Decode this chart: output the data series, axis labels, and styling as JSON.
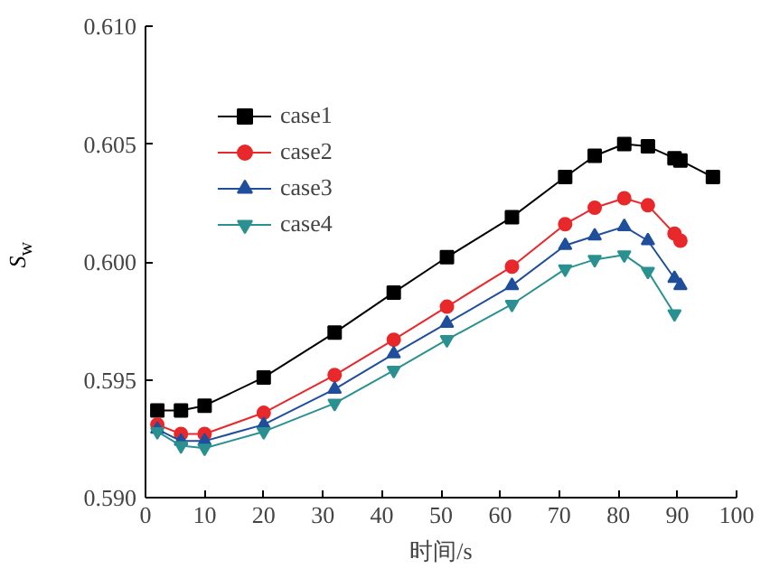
{
  "chart_data": {
    "type": "line",
    "xlabel": "时间/s",
    "ylabel": "S$_{w}$",
    "xlim": [
      0,
      100
    ],
    "ylim": [
      0.59,
      0.61
    ],
    "xticks": [
      0,
      10,
      20,
      30,
      40,
      50,
      60,
      70,
      80,
      90,
      100
    ],
    "yticks": [
      {
        "value": 0.59,
        "label": "0.590"
      },
      {
        "value": 0.595,
        "label": "0.595"
      },
      {
        "value": 0.6,
        "label": "0.600"
      },
      {
        "value": 0.605,
        "label": "0.605"
      },
      {
        "value": 0.61,
        "label": "0.610"
      }
    ],
    "grid": false,
    "legend": "top left",
    "series": [
      {
        "name": "case1",
        "color": "#000000",
        "marker": "square",
        "x": [
          2,
          6,
          10,
          20,
          32,
          42,
          51,
          62,
          71,
          76,
          81,
          85,
          89.5,
          90.5,
          96
        ],
        "values": [
          0.5937,
          0.5937,
          0.5939,
          0.5951,
          0.597,
          0.5987,
          0.6002,
          0.6019,
          0.6036,
          0.6045,
          0.605,
          0.6049,
          0.6044,
          0.6043,
          0.6036
        ]
      },
      {
        "name": "case2",
        "color": "#e8282a",
        "marker": "circle",
        "x": [
          2,
          6,
          10,
          20,
          32,
          42,
          51,
          62,
          71,
          76,
          81,
          85,
          89.5,
          90.5
        ],
        "values": [
          0.5931,
          0.5927,
          0.5927,
          0.5936,
          0.5952,
          0.5967,
          0.5981,
          0.5998,
          0.6016,
          0.6023,
          0.6027,
          0.6024,
          0.6012,
          0.6009
        ]
      },
      {
        "name": "case3",
        "color": "#1f4e9c",
        "marker": "triangle",
        "x": [
          2,
          6,
          10,
          20,
          32,
          42,
          51,
          62,
          71,
          76,
          81,
          85,
          89.5,
          90.5
        ],
        "values": [
          0.5929,
          0.5924,
          0.5924,
          0.5931,
          0.5946,
          0.5961,
          0.5974,
          0.599,
          0.6007,
          0.6011,
          0.6015,
          0.6009,
          0.5993,
          0.599
        ]
      },
      {
        "name": "case4",
        "color": "#2a9090",
        "marker": "triangle",
        "x": [
          2,
          6,
          10,
          20,
          32,
          42,
          51,
          62,
          71,
          76,
          81,
          85,
          89.5
        ],
        "values": [
          0.5928,
          0.5922,
          0.5921,
          0.5928,
          0.594,
          0.5954,
          0.5967,
          0.5982,
          0.5997,
          0.6001,
          0.6003,
          0.5996,
          0.5978
        ]
      }
    ]
  }
}
